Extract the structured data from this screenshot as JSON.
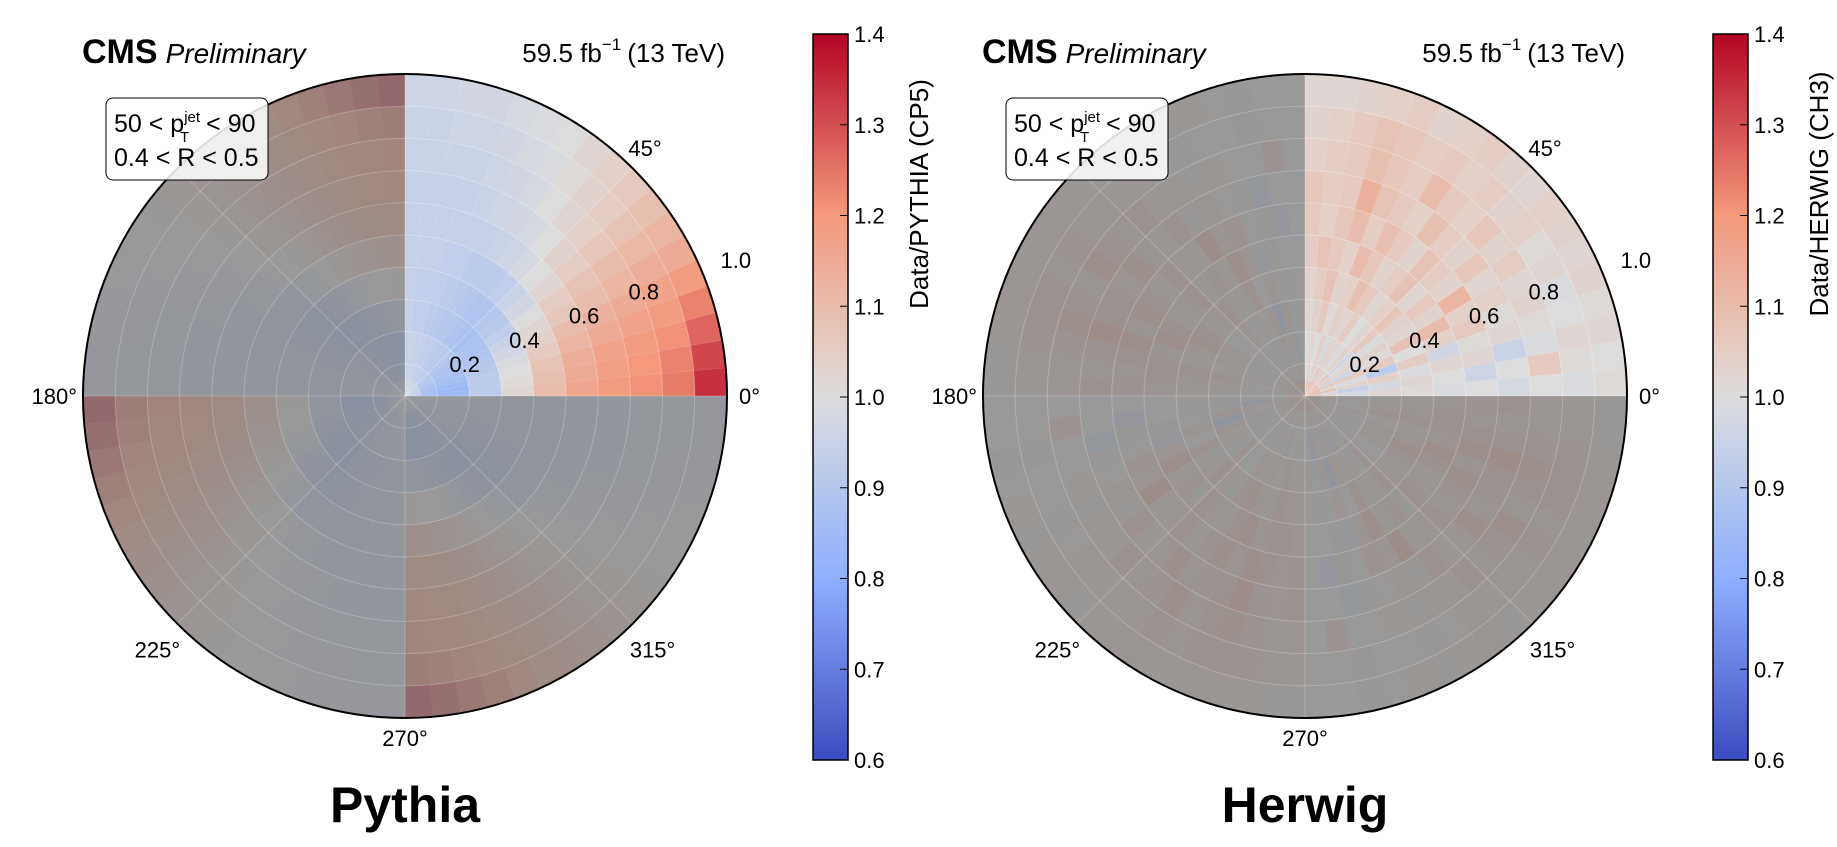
{
  "header": {
    "experiment": "CMS",
    "status": "Preliminary",
    "luminosity_value": "59.5 fb",
    "luminosity_exponent": "−1",
    "energy": "(13 TeV)"
  },
  "selection": {
    "line1_pre": "50 < p",
    "line1_sub": "T",
    "line1_sup": "jet",
    "line1_post": " < 90",
    "line2": "0.4 < R < 0.5"
  },
  "colors": {
    "cmap_low": "#3b4cc0",
    "cmap_mid": "#dddddd",
    "cmap_high": "#b40426",
    "overlay_gray": "#808080"
  },
  "chart_data": [
    {
      "type": "heatmap",
      "subtype": "polar",
      "title": "Pythia",
      "colorbar_label": "Data/PYTHIA (CP5)",
      "colorbar_range": [
        0.6,
        1.4
      ],
      "colorbar_ticks": [
        "0.6",
        "0.7",
        "0.8",
        "0.9",
        "1.0",
        "1.1",
        "1.2",
        "1.3",
        "1.4"
      ],
      "angle_labels": [
        "0°",
        "45°",
        "180°",
        "225°",
        "270°",
        "315°"
      ],
      "radial_labels": [
        "0.2",
        "0.4",
        "0.6",
        "0.8",
        "1.0"
      ],
      "r_edges": [
        0.0,
        0.05,
        0.1,
        0.2,
        0.3,
        0.4,
        0.5,
        0.6,
        0.7,
        0.8,
        0.9,
        1.0
      ],
      "n_phi_bins": 18,
      "highlight_quadrant": [
        0,
        90
      ],
      "ring_values": [
        [
          0.93,
          0.93,
          0.93,
          0.93,
          0.94,
          0.94,
          0.94,
          0.95,
          0.95,
          0.95,
          0.95,
          0.96,
          0.96,
          0.96,
          0.96,
          0.97,
          0.97,
          0.97
        ],
        [
          0.86,
          0.86,
          0.86,
          0.87,
          0.88,
          0.89,
          0.9,
          0.9,
          0.91,
          0.92,
          0.92,
          0.93,
          0.93,
          0.94,
          0.94,
          0.95,
          0.95,
          0.96
        ],
        [
          0.84,
          0.84,
          0.85,
          0.86,
          0.87,
          0.88,
          0.88,
          0.89,
          0.9,
          0.91,
          0.91,
          0.92,
          0.93,
          0.93,
          0.94,
          0.94,
          0.95,
          0.95
        ],
        [
          0.92,
          0.92,
          0.92,
          0.91,
          0.9,
          0.89,
          0.88,
          0.88,
          0.87,
          0.88,
          0.89,
          0.9,
          0.9,
          0.91,
          0.92,
          0.93,
          0.93,
          0.94
        ],
        [
          1.02,
          1.01,
          1.0,
          0.99,
          0.97,
          0.95,
          0.93,
          0.91,
          0.9,
          0.89,
          0.89,
          0.9,
          0.91,
          0.92,
          0.93,
          0.93,
          0.93,
          0.94
        ],
        [
          1.1,
          1.09,
          1.08,
          1.06,
          1.04,
          1.02,
          1.0,
          0.97,
          0.95,
          0.93,
          0.92,
          0.92,
          0.92,
          0.93,
          0.93,
          0.94,
          0.94,
          0.94
        ],
        [
          1.16,
          1.15,
          1.14,
          1.12,
          1.1,
          1.07,
          1.05,
          1.02,
          1.0,
          0.98,
          0.96,
          0.95,
          0.94,
          0.94,
          0.94,
          0.94,
          0.94,
          0.94
        ],
        [
          1.19,
          1.18,
          1.17,
          1.15,
          1.13,
          1.1,
          1.08,
          1.05,
          1.03,
          1.0,
          0.98,
          0.97,
          0.96,
          0.95,
          0.94,
          0.94,
          0.94,
          0.94
        ],
        [
          1.21,
          1.2,
          1.19,
          1.17,
          1.15,
          1.12,
          1.1,
          1.07,
          1.04,
          1.02,
          1.0,
          0.98,
          0.97,
          0.96,
          0.95,
          0.95,
          0.95,
          0.95
        ],
        [
          1.24,
          1.23,
          1.21,
          1.19,
          1.17,
          1.14,
          1.11,
          1.08,
          1.05,
          1.03,
          1.01,
          0.99,
          0.98,
          0.97,
          0.96,
          0.96,
          0.95,
          0.95
        ],
        [
          1.34,
          1.31,
          1.27,
          1.23,
          1.19,
          1.15,
          1.12,
          1.09,
          1.06,
          1.04,
          1.02,
          1.0,
          0.99,
          0.98,
          0.97,
          0.97,
          0.96,
          0.96
        ]
      ]
    },
    {
      "type": "heatmap",
      "subtype": "polar",
      "title": "Herwig",
      "colorbar_label": "Data/HERWIG (CH3)",
      "colorbar_range": [
        0.6,
        1.4
      ],
      "colorbar_ticks": [
        "0.6",
        "0.7",
        "0.8",
        "0.9",
        "1.0",
        "1.1",
        "1.2",
        "1.3",
        "1.4"
      ],
      "angle_labels": [
        "0°",
        "45°",
        "180°",
        "225°",
        "270°",
        "315°"
      ],
      "radial_labels": [
        "0.2",
        "0.4",
        "0.6",
        "0.8",
        "1.0"
      ],
      "r_edges": [
        0.0,
        0.05,
        0.1,
        0.2,
        0.3,
        0.4,
        0.5,
        0.6,
        0.7,
        0.8,
        0.9,
        1.0
      ],
      "n_phi_bins": 18,
      "highlight_quadrant": [
        0,
        90
      ],
      "ring_values": [
        [
          1.12,
          0.97,
          1.15,
          1.02,
          1.18,
          0.99,
          1.13,
          1.04,
          1.16,
          1.0,
          1.11,
          1.05,
          1.14,
          0.98,
          1.1,
          1.03,
          1.12,
          1.0
        ],
        [
          1.04,
          0.98,
          1.08,
          1.01,
          1.06,
          0.97,
          1.05,
          1.02,
          1.07,
          0.99,
          1.04,
          1.03,
          1.06,
          0.98,
          1.05,
          1.01,
          1.04,
          1.0
        ],
        [
          0.98,
          0.94,
          1.03,
          0.99,
          1.05,
          0.96,
          1.02,
          1.01,
          0.97,
          1.04,
          0.99,
          1.02,
          1.03,
          0.98,
          1.04,
          1.0,
          1.02,
          1.01
        ],
        [
          1.02,
          0.98,
          1.04,
          0.92,
          1.05,
          1.01,
          1.03,
          0.99,
          1.06,
          1.02,
          1.0,
          1.05,
          1.02,
          1.04,
          1.01,
          1.06,
          1.03,
          1.02
        ],
        [
          1.01,
          1.02,
          0.99,
          1.05,
          1.0,
          1.08,
          1.02,
          1.03,
          1.07,
          1.04,
          1.02,
          1.06,
          1.09,
          1.04,
          1.03,
          1.08,
          1.05,
          1.03
        ],
        [
          0.99,
          1.0,
          1.02,
          0.97,
          1.04,
          1.1,
          1.03,
          1.06,
          1.02,
          1.08,
          1.05,
          1.03,
          1.07,
          1.1,
          1.04,
          1.06,
          1.08,
          1.05
        ],
        [
          1.0,
          0.96,
          1.02,
          1.01,
          1.06,
          1.04,
          1.12,
          1.03,
          1.05,
          1.08,
          1.03,
          1.06,
          1.09,
          1.05,
          1.1,
          1.07,
          1.04,
          1.06
        ],
        [
          0.98,
          1.0,
          0.95,
          1.02,
          1.01,
          1.04,
          1.02,
          1.07,
          1.03,
          1.05,
          1.09,
          1.04,
          1.06,
          1.08,
          1.13,
          1.06,
          1.05,
          1.07
        ],
        [
          1.0,
          1.06,
          0.99,
          1.01,
          1.03,
          1.02,
          1.05,
          1.03,
          1.07,
          1.04,
          1.06,
          1.1,
          1.05,
          1.07,
          1.09,
          1.06,
          1.05,
          1.04
        ],
        [
          0.99,
          1.01,
          1.02,
          1.0,
          0.99,
          1.02,
          1.01,
          1.04,
          1.03,
          1.05,
          1.04,
          1.06,
          1.05,
          1.07,
          1.08,
          1.06,
          1.04,
          1.03
        ],
        [
          1.01,
          1.0,
          1.02,
          1.01,
          1.03,
          1.02,
          1.03,
          1.04,
          1.02,
          1.03,
          1.05,
          1.04,
          1.03,
          1.05,
          1.04,
          1.03,
          1.02,
          1.02
        ]
      ]
    }
  ]
}
